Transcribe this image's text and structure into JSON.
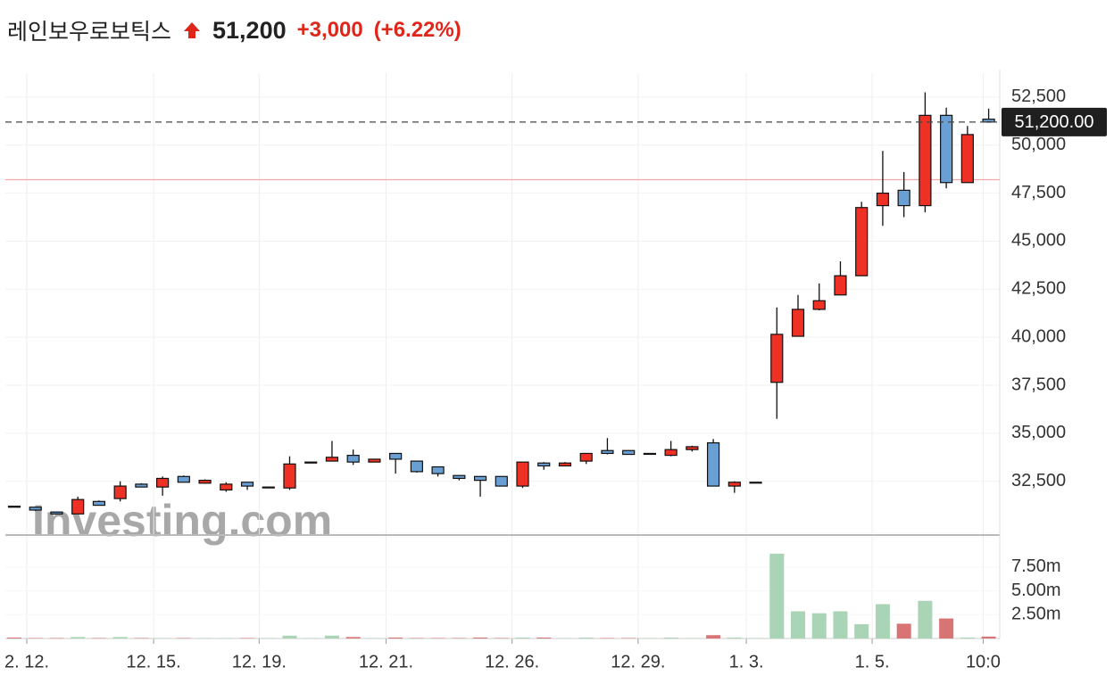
{
  "chart_data": {
    "type": "candlestick",
    "title": "레인보우로보틱스",
    "price": {
      "value": 51200,
      "label": "51,200"
    },
    "change": {
      "value": 3000,
      "label": "+3,000"
    },
    "change_pct": {
      "value": 6.22,
      "label": "(+6.22%)"
    },
    "watermark": "Investing.com",
    "categories": [
      null,
      null,
      null,
      null,
      null,
      null,
      null,
      null,
      null,
      null,
      null,
      null,
      null,
      null,
      null,
      null,
      null,
      null,
      null,
      null,
      null,
      null,
      null,
      null,
      null,
      null,
      null,
      null,
      null,
      null,
      null,
      null,
      null,
      null,
      null,
      null,
      null,
      null,
      null,
      null,
      null,
      null,
      null,
      null,
      null,
      null,
      null
    ],
    "open": [
      31200,
      31150,
      30900,
      30800,
      31450,
      31600,
      32350,
      32200,
      32750,
      32400,
      32050,
      32450,
      32200,
      32150,
      33450,
      33550,
      33850,
      33500,
      33950,
      33550,
      33250,
      32800,
      32750,
      32750,
      32250,
      33450,
      33300,
      33550,
      34100,
      34100,
      33950,
      33850,
      34150,
      34500,
      32250,
      32450,
      37650,
      40050,
      41450,
      42200,
      43200,
      46850,
      47650,
      46850,
      51550,
      48050,
      51350
    ],
    "high": [
      31200,
      31150,
      30900,
      31700,
      31500,
      32500,
      32400,
      32750,
      32800,
      32600,
      32450,
      32450,
      32200,
      33800,
      33500,
      34600,
      34150,
      33650,
      33950,
      33550,
      33250,
      32800,
      32750,
      32750,
      33500,
      33500,
      33500,
      33950,
      34750,
      34100,
      33950,
      34600,
      34350,
      34700,
      32500,
      32450,
      41550,
      42200,
      42800,
      43950,
      47050,
      49700,
      48600,
      52750,
      51950,
      51000,
      51900
    ],
    "low": [
      31150,
      30950,
      30800,
      30800,
      31250,
      31450,
      32200,
      31750,
      32450,
      32400,
      31950,
      32050,
      32200,
      32050,
      33450,
      33550,
      33350,
      33500,
      32900,
      32950,
      32750,
      32550,
      31700,
      32250,
      32150,
      33100,
      33300,
      33400,
      33900,
      33900,
      33950,
      33800,
      34050,
      32250,
      31900,
      32450,
      35750,
      40050,
      41400,
      42200,
      43200,
      45800,
      46250,
      46500,
      47750,
      48050,
      51200
    ],
    "close": [
      31150,
      31000,
      30800,
      31550,
      31250,
      32250,
      32200,
      32650,
      32450,
      32550,
      32350,
      32250,
      32200,
      33400,
      33500,
      33750,
      33500,
      33650,
      33650,
      33000,
      32900,
      32650,
      32550,
      32250,
      33500,
      33300,
      33450,
      33950,
      33950,
      33900,
      33950,
      34150,
      34300,
      32250,
      32450,
      32450,
      40150,
      41450,
      41900,
      43200,
      46750,
      47500,
      46850,
      51550,
      48050,
      50550,
      51200
    ],
    "volume": [
      0.1,
      0.05,
      0.05,
      0.15,
      0.05,
      0.15,
      0.05,
      0.05,
      0.05,
      0.05,
      0.05,
      0.05,
      0.05,
      0.3,
      0.05,
      0.3,
      0.15,
      0.05,
      0.1,
      0.05,
      0.05,
      0.05,
      0.1,
      0.05,
      0.1,
      0.1,
      0.05,
      0.1,
      0.05,
      0.05,
      0.05,
      0.1,
      0.05,
      0.35,
      0.1,
      0.05,
      8.9,
      2.85,
      2.65,
      2.85,
      1.5,
      3.6,
      1.55,
      3.95,
      2.1,
      0.1,
      0.2
    ],
    "ylim": [
      29700,
      53470
    ],
    "yticks": [
      {
        "value": 32500,
        "label": "32,500"
      },
      {
        "value": 35000,
        "label": "35,000"
      },
      {
        "value": 37500,
        "label": "37,500"
      },
      {
        "value": 40000,
        "label": "40,000"
      },
      {
        "value": 42500,
        "label": "42,500"
      },
      {
        "value": 45000,
        "label": "45,000"
      },
      {
        "value": 47500,
        "label": "47,500"
      },
      {
        "value": 50000,
        "label": "50,000"
      },
      {
        "value": 52500,
        "label": "52,500"
      }
    ],
    "volume_ylim": [
      0,
      10.85
    ],
    "volume_yticks": [
      {
        "value": 2.5,
        "label": "2.50m"
      },
      {
        "value": 5,
        "label": "5.00m"
      },
      {
        "value": 7.5,
        "label": "7.50m"
      }
    ],
    "xticks": [
      {
        "value": 0.59,
        "label": "2. 12."
      },
      {
        "value": 6.58,
        "label": "12. 15."
      },
      {
        "value": 11.56,
        "label": "12. 19."
      },
      {
        "value": 17.55,
        "label": "12. 21."
      },
      {
        "value": 23.5,
        "label": "12. 26."
      },
      {
        "value": 29.45,
        "label": "12. 29."
      },
      {
        "value": 34.56,
        "label": "1. 3."
      },
      {
        "value": 40.5,
        "label": "1. 5."
      },
      {
        "value": 45.74,
        "label": "10:0"
      }
    ],
    "last_price": {
      "value": 51200,
      "label": "51,200.00"
    },
    "prev_close": 48200,
    "grid": true,
    "up_color": "#ee3124",
    "down_color": "#6a9fd4",
    "volume_up_color": "#a9d4b5",
    "volume_down_color": "#d97474"
  }
}
